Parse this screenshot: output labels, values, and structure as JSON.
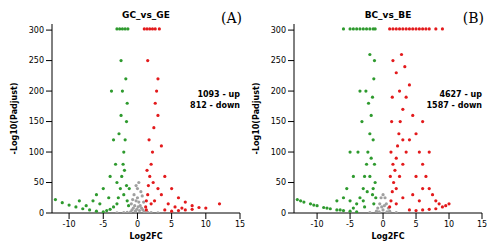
{
  "chart_data": [
    {
      "type": "scatter",
      "title": "GC_vs_GE",
      "annotations": [
        "(A)",
        "1093 - up",
        "812 - down"
      ],
      "x_label": "Log2FC",
      "y_label": "-Log10(Padjust)",
      "xlim": [
        -12.5,
        15
      ],
      "ylim": [
        0,
        310
      ],
      "xticks": [
        -10,
        -5,
        0,
        5,
        10,
        15
      ],
      "yticks": [
        0,
        50,
        100,
        150,
        200,
        250,
        300
      ],
      "series": [
        {
          "color": "#a0a0a0",
          "points": [
            [
              -1,
              2
            ],
            [
              -0.8,
              5
            ],
            [
              -0.6,
              8
            ],
            [
              -0.4,
              12
            ],
            [
              -0.2,
              20
            ],
            [
              0,
              25
            ],
            [
              0.2,
              18
            ],
            [
              0.4,
              12
            ],
            [
              0.6,
              8
            ],
            [
              0.8,
              5
            ],
            [
              1,
              2
            ],
            [
              -0.5,
              30
            ],
            [
              0.5,
              35
            ],
            [
              0,
              40
            ],
            [
              -0.3,
              3
            ],
            [
              0.3,
              4
            ],
            [
              -0.9,
              15
            ],
            [
              0.9,
              18
            ],
            [
              -0.7,
              22
            ],
            [
              0.7,
              28
            ],
            [
              0.1,
              10
            ],
            [
              -0.1,
              6
            ],
            [
              0.2,
              50
            ],
            [
              -0.2,
              45
            ],
            [
              -1.5,
              1
            ],
            [
              1.5,
              1
            ],
            [
              -2,
              0.5
            ],
            [
              2,
              0.5
            ],
            [
              -3,
              0.3
            ],
            [
              3,
              0.3
            ]
          ]
        },
        {
          "color": "#2e9a2e",
          "points": [
            [
              -12,
              22
            ],
            [
              -11,
              17
            ],
            [
              -10,
              13
            ],
            [
              -9,
              10
            ],
            [
              -8,
              7
            ],
            [
              -7,
              5
            ],
            [
              -6,
              3
            ],
            [
              -5,
              2
            ],
            [
              -4.5,
              4
            ],
            [
              -4,
              6
            ],
            [
              -3.5,
              10
            ],
            [
              -3,
              15
            ],
            [
              -2.8,
              25
            ],
            [
              -2.5,
              40
            ],
            [
              -2.3,
              60
            ],
            [
              -2.1,
              80
            ],
            [
              -2,
              100
            ],
            [
              -1.8,
              120
            ],
            [
              -1.6,
              150
            ],
            [
              -2.2,
              200
            ],
            [
              -1.5,
              180
            ],
            [
              -3.2,
              80
            ],
            [
              -4,
              60
            ],
            [
              -5,
              40
            ],
            [
              -6,
              30
            ],
            [
              -3.5,
              120
            ],
            [
              -2.6,
              302
            ],
            [
              -2.2,
              302
            ],
            [
              -1.8,
              302
            ],
            [
              -1.4,
              302
            ],
            [
              -3,
              302
            ],
            [
              -2.4,
              160
            ],
            [
              -5.5,
              15
            ],
            [
              -7.5,
              12
            ],
            [
              -3,
              50
            ],
            [
              -2,
              30
            ],
            [
              -1.5,
              20
            ],
            [
              -1.3,
              12
            ],
            [
              -1.6,
              45
            ],
            [
              -4.2,
              25
            ],
            [
              -3.8,
              200
            ],
            [
              -2.7,
              130
            ],
            [
              -1.9,
              70
            ],
            [
              -1.2,
              40
            ],
            [
              -6.5,
              20
            ],
            [
              -8.5,
              20
            ],
            [
              -2.4,
              250
            ],
            [
              -1.7,
              220
            ]
          ]
        },
        {
          "color": "#e31a1c",
          "points": [
            [
              1.2,
              10
            ],
            [
              1.3,
              20
            ],
            [
              1.5,
              30
            ],
            [
              1.6,
              45
            ],
            [
              1.8,
              60
            ],
            [
              2,
              80
            ],
            [
              2.2,
              100
            ],
            [
              2.4,
              140
            ],
            [
              2.6,
              180
            ],
            [
              3,
              220
            ],
            [
              3.5,
              110
            ],
            [
              4,
              60
            ],
            [
              5,
              40
            ],
            [
              6,
              25
            ],
            [
              7,
              18
            ],
            [
              8,
              12
            ],
            [
              9,
              9
            ],
            [
              10,
              8
            ],
            [
              12,
              15
            ],
            [
              4,
              5
            ],
            [
              5,
              3
            ],
            [
              6,
              4
            ],
            [
              7,
              5
            ],
            [
              8,
              6
            ],
            [
              1,
              302
            ],
            [
              1.4,
              302
            ],
            [
              1.8,
              302
            ],
            [
              2.2,
              302
            ],
            [
              2.6,
              302
            ],
            [
              3.2,
              302
            ],
            [
              1.5,
              250
            ],
            [
              2.8,
              200
            ],
            [
              1.7,
              120
            ],
            [
              1.4,
              70
            ],
            [
              3,
              40
            ],
            [
              2.5,
              20
            ],
            [
              4.5,
              15
            ],
            [
              3.5,
              30
            ],
            [
              2,
              15
            ],
            [
              1.3,
              5
            ],
            [
              5.5,
              10
            ],
            [
              6.5,
              8
            ],
            [
              3,
              160
            ],
            [
              2.3,
              50
            ]
          ]
        }
      ]
    },
    {
      "type": "scatter",
      "title": "BC_vs_BE",
      "annotations": [
        "(B)",
        "4627 - up",
        "1587 - down"
      ],
      "x_label": "Log2FC",
      "y_label": "-Log10(Padjust)",
      "xlim": [
        -13.5,
        15
      ],
      "ylim": [
        0,
        310
      ],
      "xticks": [
        -10,
        -5,
        0,
        5,
        10,
        15
      ],
      "yticks": [
        0,
        50,
        100,
        150,
        200,
        250,
        300
      ],
      "series": [
        {
          "color": "#a0a0a0",
          "points": [
            [
              -1,
              3
            ],
            [
              -0.8,
              8
            ],
            [
              -0.5,
              15
            ],
            [
              -0.3,
              25
            ],
            [
              0,
              30
            ],
            [
              0.3,
              25
            ],
            [
              0.5,
              15
            ],
            [
              0.8,
              8
            ],
            [
              1,
              3
            ],
            [
              -0.2,
              10
            ],
            [
              0.2,
              12
            ],
            [
              0,
              5
            ],
            [
              -0.6,
              2
            ],
            [
              0.6,
              2
            ],
            [
              -2,
              0.5
            ],
            [
              2,
              0.5
            ]
          ]
        },
        {
          "color": "#2e9a2e",
          "points": [
            [
              -13,
              22
            ],
            [
              -12,
              18
            ],
            [
              -11,
              15
            ],
            [
              -10,
              12
            ],
            [
              -9,
              9
            ],
            [
              -8,
              7
            ],
            [
              -7,
              5
            ],
            [
              -6,
              4
            ],
            [
              -5,
              3
            ],
            [
              -4,
              2
            ],
            [
              -12.5,
              20
            ],
            [
              -10.5,
              13
            ],
            [
              -8.5,
              8
            ],
            [
              -6.5,
              5
            ],
            [
              -4.5,
              8
            ],
            [
              -4,
              15
            ],
            [
              -3.5,
              25
            ],
            [
              -3,
              40
            ],
            [
              -2.8,
              60
            ],
            [
              -2.5,
              80
            ],
            [
              -2.3,
              100
            ],
            [
              -2,
              130
            ],
            [
              -1.8,
              160
            ],
            [
              -1.6,
              190
            ],
            [
              -1.4,
              220
            ],
            [
              -1.3,
              250
            ],
            [
              -3.2,
              150
            ],
            [
              -3.8,
              100
            ],
            [
              -4.5,
              60
            ],
            [
              -5.5,
              40
            ],
            [
              -6,
              25
            ],
            [
              -7,
              20
            ],
            [
              -2.6,
              200
            ],
            [
              -2,
              260
            ],
            [
              -6,
              302
            ],
            [
              -5,
              302
            ],
            [
              -4.5,
              302
            ],
            [
              -4,
              302
            ],
            [
              -3.5,
              302
            ],
            [
              -3,
              302
            ],
            [
              -2.5,
              302
            ],
            [
              -2,
              302
            ],
            [
              -1.5,
              302
            ],
            [
              -1.2,
              302
            ],
            [
              -1.5,
              120
            ],
            [
              -1.3,
              80
            ],
            [
              -1.2,
              50
            ],
            [
              -1.1,
              25
            ],
            [
              -1.5,
              40
            ],
            [
              -2,
              60
            ],
            [
              -2.4,
              35
            ],
            [
              -3,
              20
            ],
            [
              -5,
              100
            ],
            [
              -3.5,
              200
            ],
            [
              -2.2,
              180
            ],
            [
              -1.8,
              90
            ],
            [
              -1.6,
              30
            ],
            [
              -1.4,
              15
            ],
            [
              -2.8,
              10
            ],
            [
              -5,
              20
            ]
          ]
        },
        {
          "color": "#e31a1c",
          "points": [
            [
              1,
              10
            ],
            [
              1.2,
              20
            ],
            [
              1.4,
              35
            ],
            [
              1.6,
              50
            ],
            [
              1.8,
              70
            ],
            [
              2,
              90
            ],
            [
              2.2,
              110
            ],
            [
              2.4,
              130
            ],
            [
              2.6,
              150
            ],
            [
              3,
              170
            ],
            [
              3.5,
              190
            ],
            [
              4,
              210
            ],
            [
              4.5,
              160
            ],
            [
              5,
              130
            ],
            [
              5.5,
              100
            ],
            [
              6,
              80
            ],
            [
              6.5,
              60
            ],
            [
              7,
              40
            ],
            [
              7.5,
              30
            ],
            [
              8,
              20
            ],
            [
              8.5,
              15
            ],
            [
              9,
              10
            ],
            [
              9.5,
              12
            ],
            [
              10,
              15
            ],
            [
              4,
              5
            ],
            [
              5,
              4
            ],
            [
              6,
              5
            ],
            [
              7,
              6
            ],
            [
              8,
              7
            ],
            [
              1,
              302
            ],
            [
              1.5,
              302
            ],
            [
              2,
              302
            ],
            [
              2.5,
              302
            ],
            [
              3,
              302
            ],
            [
              3.5,
              302
            ],
            [
              4,
              302
            ],
            [
              4.5,
              302
            ],
            [
              5,
              302
            ],
            [
              5.5,
              302
            ],
            [
              6,
              302
            ],
            [
              6.5,
              302
            ],
            [
              7,
              302
            ],
            [
              8,
              302
            ],
            [
              9,
              302
            ],
            [
              1.5,
              250
            ],
            [
              2,
              230
            ],
            [
              2.8,
              260
            ],
            [
              3.3,
              240
            ],
            [
              1.3,
              150
            ],
            [
              1.2,
              100
            ],
            [
              1.5,
              80
            ],
            [
              2,
              40
            ],
            [
              2.5,
              60
            ],
            [
              3,
              80
            ],
            [
              3.5,
              100
            ],
            [
              4,
              120
            ],
            [
              5,
              60
            ],
            [
              6,
              40
            ],
            [
              3,
              25
            ],
            [
              2,
              15
            ],
            [
              4.5,
              30
            ],
            [
              5.5,
              20
            ],
            [
              1.1,
              60
            ],
            [
              1.4,
              190
            ],
            [
              6,
              150
            ],
            [
              7,
              100
            ],
            [
              3,
              120
            ],
            [
              2.5,
              200
            ]
          ]
        }
      ]
    }
  ]
}
